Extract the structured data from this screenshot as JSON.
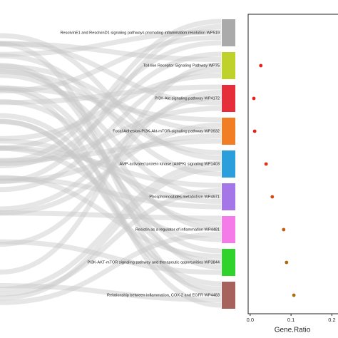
{
  "chart_data": {
    "type": "dot",
    "categories": [
      "ResolvinE1 and ResolvinD1 signaling pathways promoting inflammation resolution WP519",
      "Toll-like Receptor Signaling Pathway WP75",
      "PI3K-Akt signaling pathway WP4172",
      "Focal Adhesion-PI3K-Akt-mTOR-signaling pathway WP3932",
      "AMP-activated protein kinase (AMPK) signaling WP1403",
      "Phosphoinositides metabolism WP4971",
      "Resistin as a regulator of inflammation WP4481",
      "PI3K-AKT-mTOR signaling pathway and therapeutic opportunities WP3844",
      "Relationship between inflammation, COX-2 and EGFR WP4483"
    ],
    "bar_colors": [
      "#a9aaa9",
      "#bfd22b",
      "#e62e3a",
      "#f17d25",
      "#2b9fdc",
      "#a576e8",
      "#f57ce8",
      "#2fd32c",
      "#a8625e"
    ],
    "values": [
      null,
      0.026,
      0.009,
      0.011,
      0.039,
      0.054,
      0.082,
      0.089,
      0.107
    ],
    "dot_colors": [
      "#e3221c",
      "#e3221c",
      "#e3221c",
      "#e3221c",
      "#e12d19",
      "#d24a14",
      "#c25d10",
      "#b06a0e",
      "#a4720c"
    ],
    "xlabel": "Gene.Ratio",
    "xlim": [
      -0.005,
      0.215
    ],
    "xticks": [
      {
        "value": 0,
        "label": "0.0"
      },
      0.1,
      0.2
    ]
  }
}
